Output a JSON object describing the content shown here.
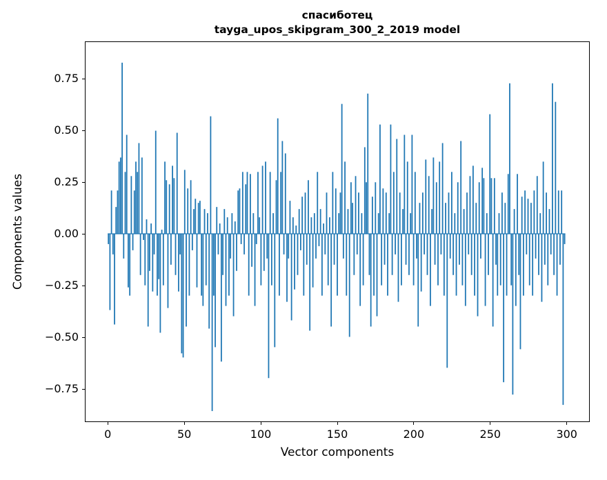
{
  "chart_data": {
    "type": "bar",
    "title": "спасиботец",
    "subtitle": "tayga_upos_skipgram_300_2_2019 model",
    "xlabel": "Vector components",
    "ylabel": "Components values",
    "xlim": [
      -15,
      315
    ],
    "ylim": [
      -0.91,
      0.93
    ],
    "x_ticks": [
      0,
      50,
      100,
      150,
      200,
      250,
      300
    ],
    "y_ticks": [
      0.75,
      0.5,
      0.25,
      0,
      -0.25,
      -0.5,
      -0.75
    ],
    "y_tick_labels": [
      "0.75",
      "0.50",
      "0.25",
      "0.00",
      "−0.25",
      "−0.50",
      "−0.75"
    ],
    "bar_color": "#1f77b4",
    "grid": false,
    "legend": null,
    "values": [
      -0.05,
      -0.37,
      0.21,
      -0.1,
      -0.44,
      0.13,
      0.21,
      0.35,
      0.37,
      0.83,
      -0.12,
      0.3,
      0.48,
      -0.26,
      -0.3,
      0.28,
      -0.08,
      0.21,
      0.35,
      0.3,
      0.44,
      -0.2,
      0.37,
      -0.03,
      -0.25,
      0.07,
      -0.45,
      -0.18,
      0.05,
      -0.28,
      -0.1,
      0.5,
      -0.3,
      -0.22,
      -0.48,
      0.02,
      -0.25,
      0.35,
      0.26,
      -0.36,
      0.24,
      -0.15,
      0.33,
      0.27,
      -0.2,
      0.49,
      -0.28,
      -0.1,
      -0.58,
      -0.6,
      0.31,
      -0.45,
      0.22,
      -0.3,
      0.26,
      -0.08,
      0.12,
      0.17,
      -0.26,
      0.15,
      0.16,
      -0.3,
      -0.35,
      0.12,
      -0.25,
      0.1,
      -0.46,
      0.57,
      -0.86,
      -0.3,
      -0.55,
      0.13,
      -0.1,
      0.05,
      -0.62,
      -0.2,
      0.12,
      -0.35,
      0.08,
      -0.3,
      -0.12,
      0.1,
      -0.4,
      0.06,
      -0.18,
      0.21,
      0.22,
      -0.05,
      0.3,
      -0.1,
      0.24,
      0.3,
      -0.3,
      0.29,
      -0.16,
      0.1,
      -0.35,
      -0.05,
      0.3,
      0.08,
      -0.25,
      0.33,
      -0.18,
      0.35,
      -0.12,
      -0.7,
      0.3,
      -0.25,
      0.1,
      -0.55,
      0.26,
      0.56,
      -0.3,
      0.3,
      0.45,
      -0.1,
      0.39,
      -0.33,
      -0.12,
      0.16,
      -0.42,
      0.08,
      -0.27,
      0.04,
      -0.2,
      0.12,
      -0.08,
      0.18,
      -0.3,
      0.2,
      -0.15,
      0.26,
      -0.47,
      0.08,
      -0.26,
      0.1,
      -0.12,
      0.3,
      -0.06,
      0.12,
      -0.3,
      0.05,
      -0.1,
      0.2,
      -0.25,
      0.08,
      -0.45,
      0.3,
      -0.15,
      0.22,
      -0.3,
      0.1,
      0.2,
      0.63,
      -0.12,
      0.35,
      -0.3,
      0.12,
      -0.5,
      0.25,
      0.15,
      -0.2,
      0.28,
      -0.1,
      0.2,
      -0.35,
      0.1,
      -0.25,
      0.42,
      0.25,
      0.68,
      -0.2,
      -0.45,
      0.18,
      -0.3,
      0.25,
      -0.4,
      0.1,
      0.53,
      -0.25,
      0.22,
      -0.15,
      0.2,
      -0.3,
      0.1,
      0.53,
      -0.2,
      0.3,
      -0.1,
      0.46,
      -0.33,
      0.2,
      -0.25,
      0.12,
      0.48,
      -0.15,
      0.35,
      -0.2,
      0.1,
      0.48,
      -0.25,
      0.3,
      -0.12,
      -0.45,
      0.15,
      -0.28,
      0.2,
      -0.1,
      0.36,
      -0.2,
      0.28,
      -0.35,
      0.12,
      0.37,
      -0.15,
      0.25,
      -0.25,
      0.35,
      -0.1,
      0.44,
      -0.3,
      0.15,
      -0.65,
      0.2,
      -0.12,
      0.3,
      -0.2,
      0.1,
      -0.3,
      0.25,
      -0.15,
      0.45,
      -0.25,
      0.12,
      -0.35,
      0.2,
      -0.1,
      0.28,
      -0.2,
      0.33,
      -0.3,
      0.15,
      -0.4,
      0.25,
      -0.12,
      0.32,
      0.27,
      -0.35,
      0.1,
      -0.2,
      0.58,
      0.27,
      -0.45,
      0.27,
      -0.15,
      -0.3,
      0.1,
      -0.25,
      0.2,
      -0.72,
      0.15,
      -0.3,
      0.29,
      0.73,
      -0.25,
      -0.78,
      0.12,
      -0.35,
      0.29,
      -0.2,
      -0.56,
      0.18,
      -0.3,
      0.21,
      -0.1,
      0.17,
      -0.25,
      0.15,
      -0.3,
      0.21,
      -0.12,
      0.28,
      -0.2,
      0.1,
      -0.33,
      0.35,
      -0.15,
      0.2,
      -0.25,
      0.12,
      -0.1,
      0.73,
      -0.2,
      0.64,
      -0.3,
      0.21,
      -0.15,
      0.21,
      -0.83,
      -0.05
    ]
  }
}
